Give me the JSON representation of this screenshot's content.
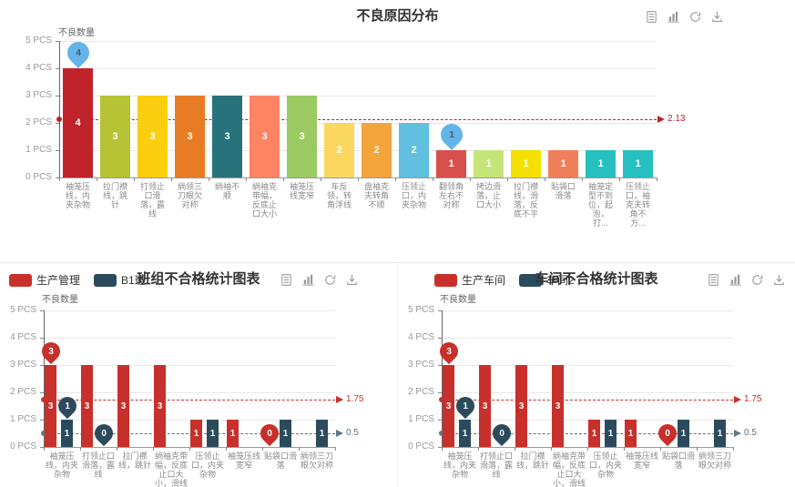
{
  "toolbox": {
    "icons": [
      "data-view-icon",
      "magic-type-bar-icon",
      "restore-icon",
      "save-image-icon"
    ]
  },
  "charts": [
    {
      "title": "不良原因分布",
      "y_axis_name": "不良数量",
      "legend": []
    },
    {
      "title": "班组不合格统计图表",
      "y_axis_name": "不良数量",
      "legend": [
        {
          "label": "生产管理",
          "color": "#C7302B"
        },
        {
          "label": "B1班",
          "color": "#2B4B5D"
        }
      ]
    },
    {
      "title": "车间不合格统计图表",
      "y_axis_name": "不良数量",
      "legend": [
        {
          "label": "生产车间",
          "color": "#C7302B"
        },
        {
          "label": "车间2",
          "color": "#2B4B5D"
        }
      ]
    }
  ],
  "chart_data": [
    {
      "type": "bar",
      "title": "不良原因分布",
      "ylabel": "不良数量",
      "ylim": [
        0,
        5
      ],
      "unit": "PCS",
      "grid": true,
      "y_tick_labels": [
        "5 PCS",
        "4 PCS",
        "3 PCS",
        "2 PCS",
        "1 PCS",
        "0 PCS"
      ],
      "categories": [
        "袖笼压线，内夹杂物",
        "拉门襟线，跳针",
        "打领止口滑落，露线",
        "绱领三刀眼欠对称",
        "绱袖不顺",
        "绱袖克带幅，反底止口大小",
        "袖笼压线宽窄",
        "车反领，转角浮线",
        "盘袖克夫转角不顺",
        "压领止口，内夹杂物",
        "翻领角左右不对称",
        "拷边滑落，止口大小",
        "拉门襟线，滑落，反底不平",
        "贴袋口滑落",
        "袖笼定型不到位，起泡，打...",
        "压领止口，袖克夫转角不方..."
      ],
      "series": [
        {
          "name": "不良数量",
          "values": [
            4,
            3,
            3,
            3,
            3,
            3,
            3,
            2,
            2,
            2,
            1,
            1,
            1,
            1,
            1,
            1
          ],
          "bar_colors": [
            "#C1232B",
            "#B5C334",
            "#FCCE10",
            "#E87C25",
            "#27727B",
            "#FE8463",
            "#9BCA63",
            "#FAD860",
            "#F3A43B",
            "#60C0DD",
            "#D7504B",
            "#C6E579",
            "#F4E001",
            "#F0805A",
            "#26C0C0",
            "#26C0C0"
          ]
        }
      ],
      "marklines": [
        {
          "value": 2.13,
          "label": "2.13",
          "color": "#C1232B"
        }
      ],
      "markpoints": [
        {
          "series": 0,
          "category": 0,
          "value": 4,
          "label": "4",
          "color": "#63B4E8",
          "text": "#44586B"
        },
        {
          "series": 0,
          "category": 10,
          "value": 1,
          "label": "1",
          "color": "#63B4E8",
          "text": "#44586B"
        }
      ]
    },
    {
      "type": "bar",
      "title": "班组不合格统计图表",
      "ylabel": "不良数量",
      "ylim": [
        0,
        5
      ],
      "unit": "PCS",
      "grid": true,
      "legend_position": "top-left",
      "y_tick_labels": [
        "5 PCS",
        "4 PCS",
        "3 PCS",
        "2 PCS",
        "1 PCS",
        "0 PCS"
      ],
      "categories": [
        "袖笼压线，内夹杂物",
        "打领止口滑落，露线",
        "拉门襟线，跳针",
        "绱袖克带幅，反底止口大小，滑线",
        "压领止口，内夹杂物",
        "袖笼压线宽窄",
        "贴袋口滑落",
        "绱领三刀眼欠对称"
      ],
      "series": [
        {
          "name": "生产管理",
          "color": "#C7302B",
          "values": [
            3,
            3,
            3,
            3,
            1,
            1,
            0,
            0
          ]
        },
        {
          "name": "B1班",
          "color": "#2B4B5D",
          "values": [
            1,
            0,
            0,
            0,
            1,
            0,
            1,
            1
          ]
        }
      ],
      "marklines": [
        {
          "value": 1.75,
          "label": "1.75",
          "color": "#C7302B"
        },
        {
          "value": 0.5,
          "label": "0.5",
          "color": "#5D7687"
        }
      ],
      "markpoints": [
        {
          "series": 0,
          "category": 0,
          "value": 3,
          "label": "3",
          "color": "#C7302B",
          "text": "#ffffff"
        },
        {
          "series": 1,
          "category": 0,
          "value": 1,
          "label": "1",
          "color": "#2B4B5D",
          "text": "#ffffff"
        },
        {
          "series": 1,
          "category": 1,
          "value": 0,
          "label": "0",
          "color": "#2B4B5D",
          "text": "#ffffff"
        },
        {
          "series": 0,
          "category": 6,
          "value": 0,
          "label": "0",
          "color": "#C7302B",
          "text": "#ffffff"
        }
      ]
    },
    {
      "type": "bar",
      "title": "车间不合格统计图表",
      "ylabel": "不良数量",
      "ylim": [
        0,
        5
      ],
      "unit": "PCS",
      "grid": true,
      "legend_position": "top-left",
      "y_tick_labels": [
        "5 PCS",
        "4 PCS",
        "3 PCS",
        "2 PCS",
        "1 PCS",
        "0 PCS"
      ],
      "categories": [
        "袖笼压线，内夹杂物",
        "打领止口滑落，露线",
        "拉门襟线，跳针",
        "绱袖克带幅，反底止口大小，滑线",
        "压领止口，内夹杂物",
        "袖笼压线宽窄",
        "贴袋口滑落",
        "绱领三刀眼欠对称"
      ],
      "series": [
        {
          "name": "生产车间",
          "color": "#C7302B",
          "values": [
            3,
            3,
            3,
            3,
            1,
            1,
            0,
            0
          ]
        },
        {
          "name": "车间2",
          "color": "#2B4B5D",
          "values": [
            1,
            0,
            0,
            0,
            1,
            0,
            1,
            1
          ]
        }
      ],
      "marklines": [
        {
          "value": 1.75,
          "label": "1.75",
          "color": "#C7302B"
        },
        {
          "value": 0.5,
          "label": "0.5",
          "color": "#5D7687"
        }
      ],
      "markpoints": [
        {
          "series": 0,
          "category": 0,
          "value": 3,
          "label": "3",
          "color": "#C7302B",
          "text": "#ffffff"
        },
        {
          "series": 1,
          "category": 0,
          "value": 1,
          "label": "1",
          "color": "#2B4B5D",
          "text": "#ffffff"
        },
        {
          "series": 1,
          "category": 1,
          "value": 0,
          "label": "0",
          "color": "#2B4B5D",
          "text": "#ffffff"
        },
        {
          "series": 0,
          "category": 6,
          "value": 0,
          "label": "0",
          "color": "#C7302B",
          "text": "#ffffff"
        }
      ]
    }
  ]
}
